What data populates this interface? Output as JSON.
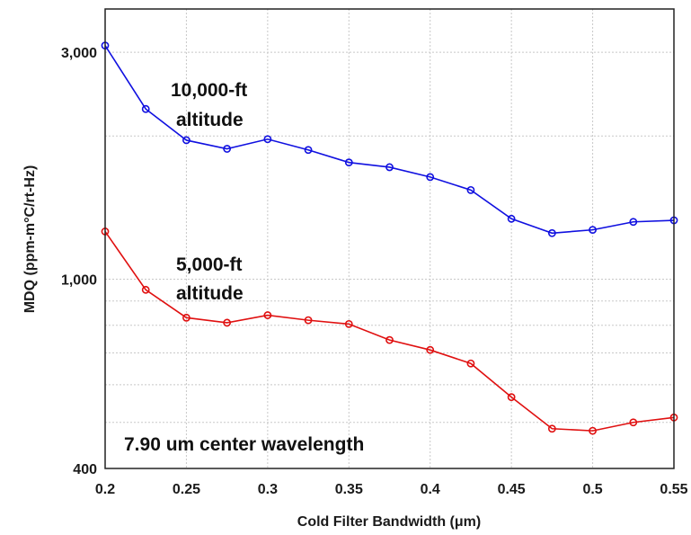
{
  "chart_data": {
    "type": "line",
    "xlabel": "Cold Filter Bandwidth (μm)",
    "ylabel": "MDQ (ppm-m°C/rt-Hz)",
    "xlim": [
      0.2,
      0.55
    ],
    "ylim": [
      400,
      3700
    ],
    "yscale": "log",
    "grid": true,
    "x_ticks": [
      "0.2",
      "0.25",
      "0.3",
      "0.35",
      "0.4",
      "0.45",
      "0.5",
      "0.55"
    ],
    "y_ticks": [
      "400",
      "1,000",
      "3,000"
    ],
    "x": [
      0.2,
      0.225,
      0.25,
      0.275,
      0.3,
      0.325,
      0.35,
      0.375,
      0.4,
      0.425,
      0.45,
      0.475,
      0.5,
      0.525,
      0.55
    ],
    "series": [
      {
        "color": "#1010e0",
        "values": [
          3100,
          2280,
          1960,
          1880,
          1970,
          1870,
          1760,
          1720,
          1640,
          1540,
          1340,
          1250,
          1270,
          1320,
          1330
        ]
      },
      {
        "color": "#e01010",
        "values": [
          1260,
          950,
          830,
          810,
          840,
          820,
          805,
          745,
          710,
          665,
          565,
          485,
          480,
          500,
          512
        ]
      }
    ],
    "annotations": [
      {
        "lines": [
          "10,000-ft",
          "altitude"
        ]
      },
      {
        "lines": [
          "5,000-ft",
          "altitude"
        ]
      },
      {
        "lines": [
          "7.90 um center wavelength"
        ]
      }
    ]
  }
}
